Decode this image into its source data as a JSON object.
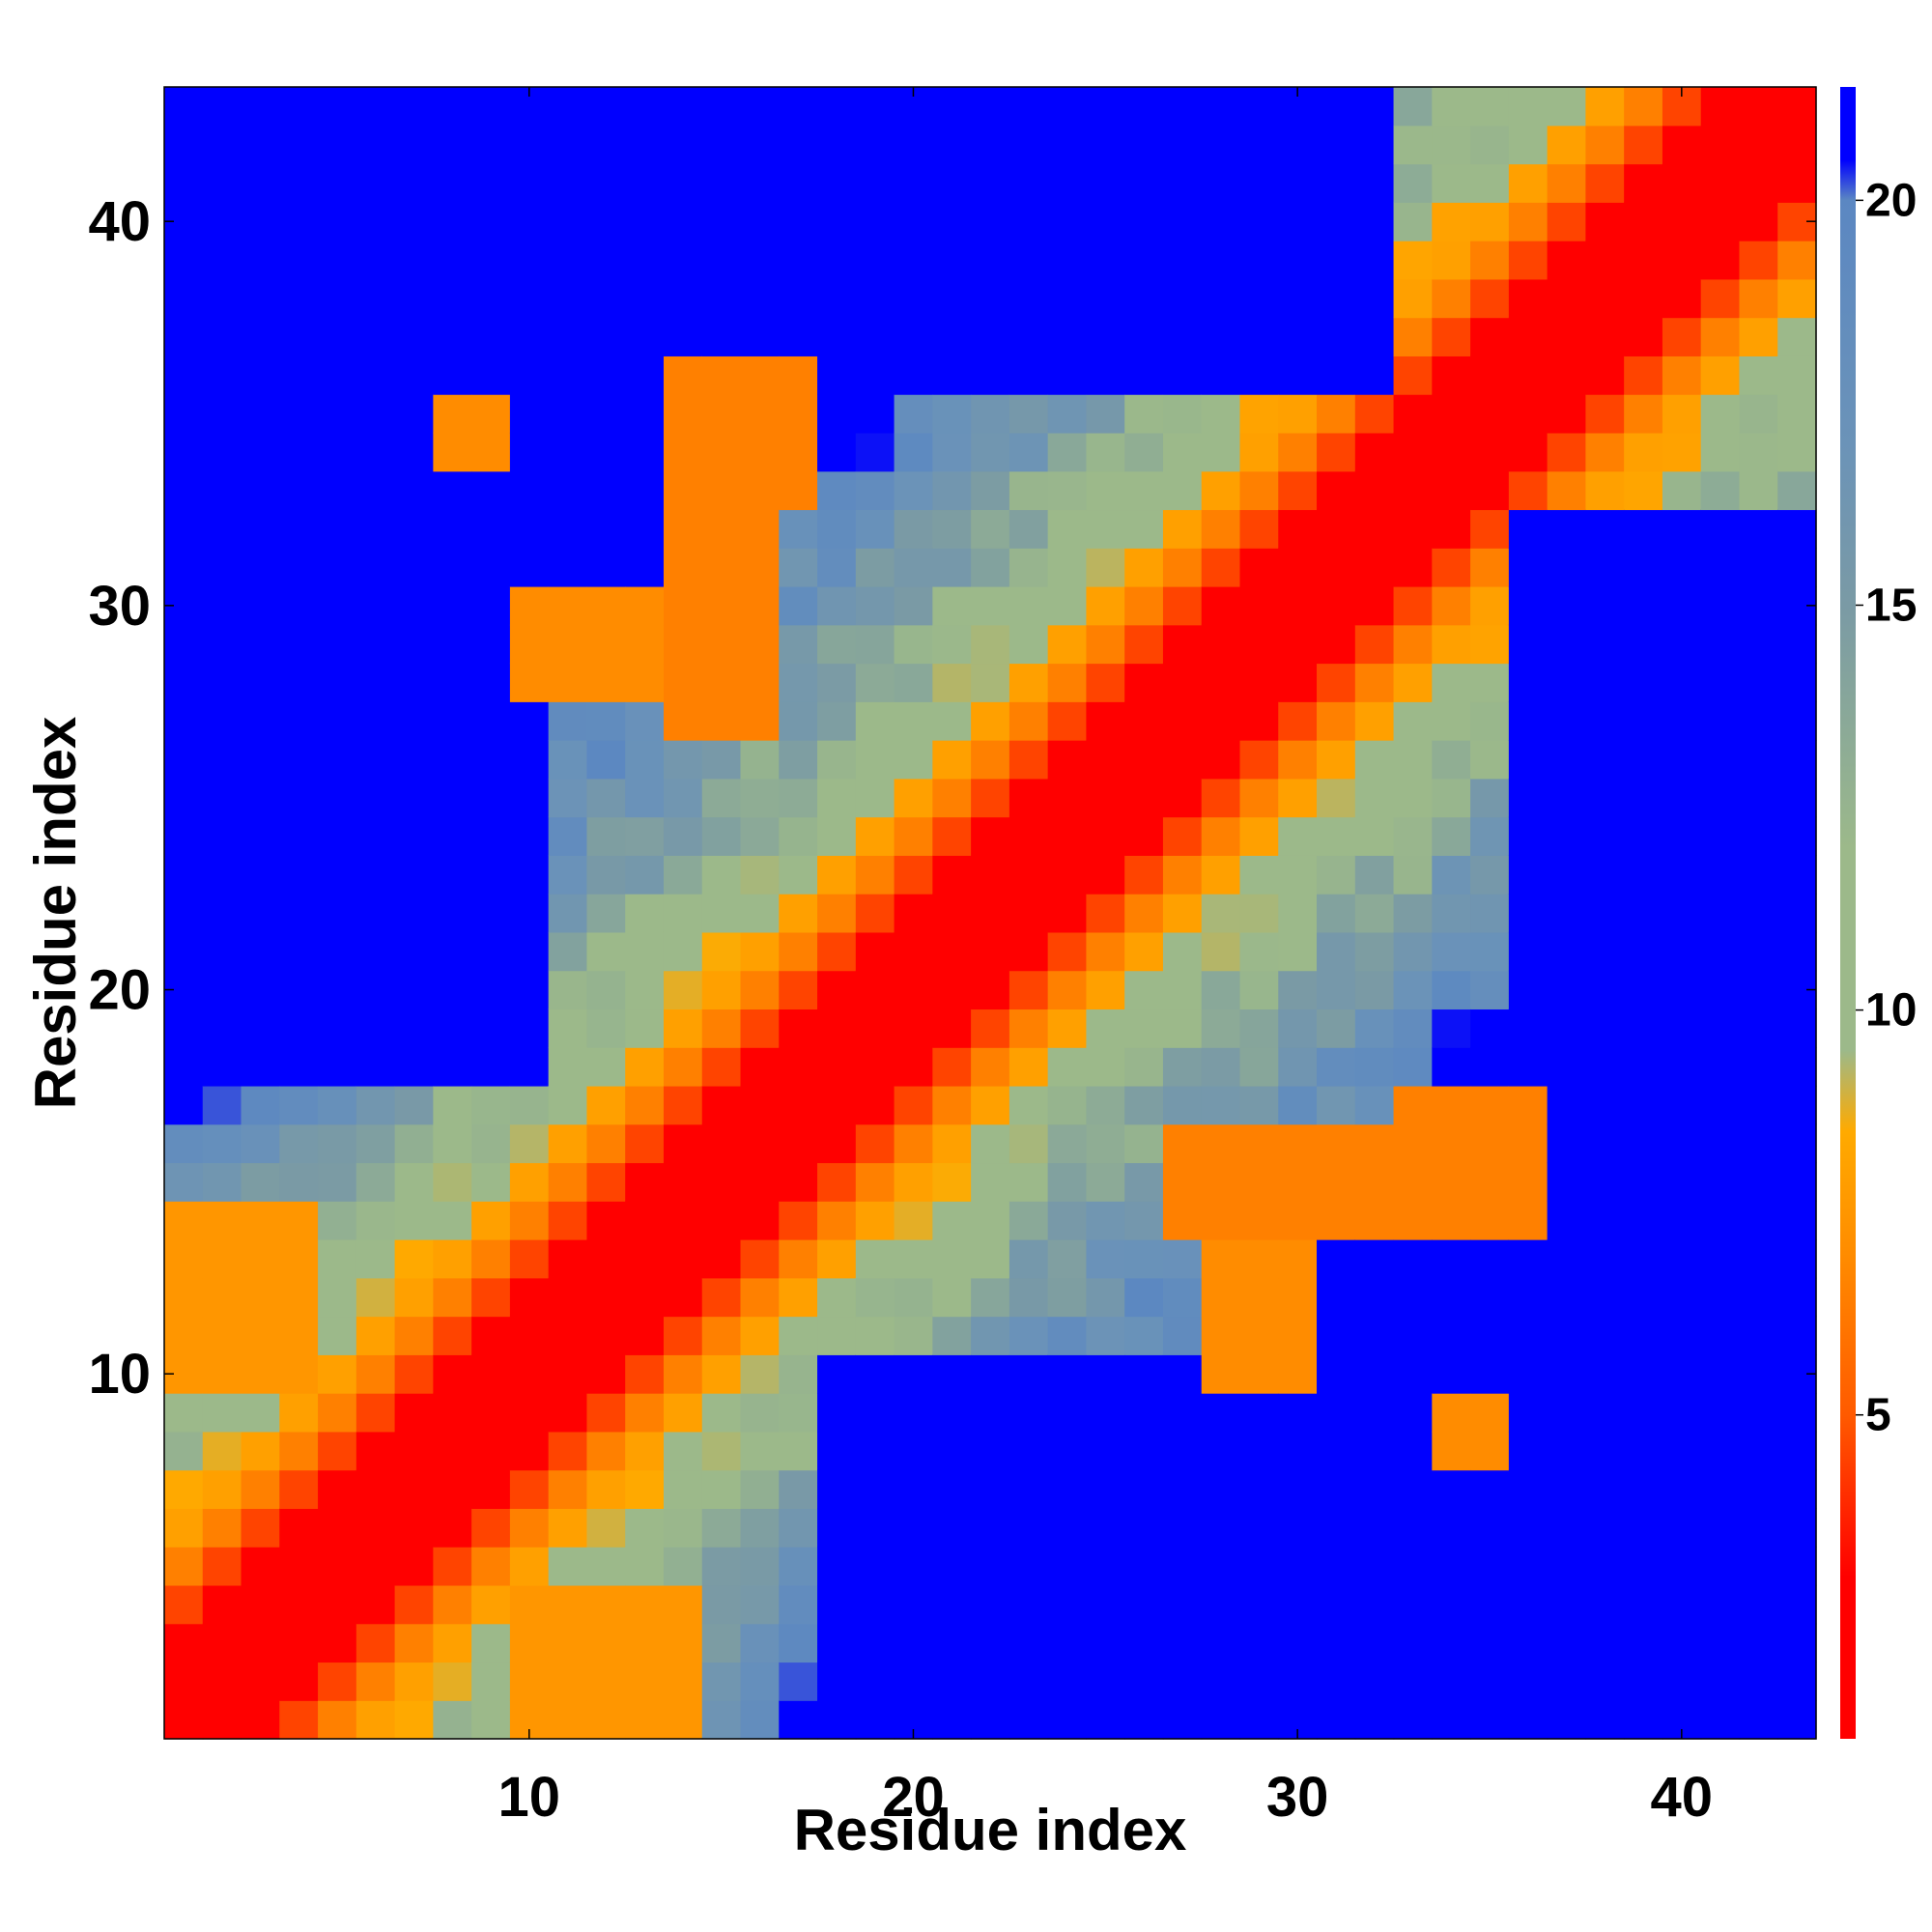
{
  "chart_data": {
    "type": "heatmap",
    "title": "",
    "xlabel": "Residue index",
    "ylabel": "Residue index",
    "n": 43,
    "x_range": [
      1,
      43
    ],
    "y_range": [
      1,
      43
    ],
    "x_ticks": [
      10,
      20,
      30,
      40
    ],
    "y_ticks": [
      10,
      20,
      30,
      40
    ],
    "colorbar": {
      "range": [
        1,
        21.4
      ],
      "ticks": [
        5,
        10,
        15,
        20
      ],
      "stops": [
        {
          "value": 1,
          "color": "#ff0000"
        },
        {
          "value": 3,
          "color": "#ff0000"
        },
        {
          "value": 5,
          "color": "#ff5a00"
        },
        {
          "value": 7,
          "color": "#ff8c00"
        },
        {
          "value": 8.5,
          "color": "#ffaa00"
        },
        {
          "value": 9.5,
          "color": "#9cb98a"
        },
        {
          "value": 12,
          "color": "#9cb98a"
        },
        {
          "value": 15,
          "color": "#7a9aa5"
        },
        {
          "value": 17,
          "color": "#6b93b8"
        },
        {
          "value": 20,
          "color": "#5b87c2"
        },
        {
          "value": 20.5,
          "color": "#0000ff"
        },
        {
          "value": 21.4,
          "color": "#0000ff"
        }
      ]
    },
    "symmetric": true,
    "approximate": true,
    "distance_model": "d(|i-j|) with long-range contact clusters",
    "self_value": 1,
    "sequence_separation_values": [
      1,
      1,
      1,
      4.5,
      6.5,
      8,
      9.8,
      11,
      12,
      13,
      14,
      15,
      16,
      17,
      18,
      19,
      20.5
    ],
    "clusters": [
      {
        "x": [
          1,
          10
        ],
        "y": [
          18,
          32
        ],
        "value": 21
      },
      {
        "x": [
          1,
          5
        ],
        "y": [
          33,
          43
        ],
        "value": 21
      },
      {
        "x": [
          11,
          13
        ],
        "y": [
          32,
          35
        ],
        "value": 21
      },
      {
        "x": [
          17,
          19
        ],
        "y": [
          41,
          43
        ],
        "value": 21
      },
      {
        "x": [
          20,
          31
        ],
        "y": [
          40,
          43
        ],
        "value": 21
      },
      {
        "x": [
          20,
          26
        ],
        "y": [
          36,
          39
        ],
        "value": 21
      },
      {
        "x": [
          19,
          30
        ],
        "y": [
          1,
          10
        ],
        "value": 21
      },
      {
        "x": [
          33,
          43
        ],
        "y": [
          1,
          5
        ],
        "value": 21
      },
      {
        "x": [
          36,
          43
        ],
        "y": [
          18,
          32
        ],
        "value": 21
      },
      {
        "x": [
          32,
          36
        ],
        "y": [
          11,
          13
        ],
        "value": 21
      },
      {
        "x": [
          28,
          30
        ],
        "y": [
          10,
          14
        ],
        "value": 7
      },
      {
        "x": [
          33,
          36
        ],
        "y": [
          14,
          17
        ],
        "value": 6.5
      },
      {
        "x": [
          14,
          16
        ],
        "y": [
          27,
          32
        ],
        "value": 6.5
      },
      {
        "x": [
          8,
          9
        ],
        "y": [
          34,
          35
        ],
        "value": 7
      },
      {
        "x": [
          10,
          14
        ],
        "y": [
          1,
          4
        ],
        "value": 7.5
      }
    ]
  }
}
